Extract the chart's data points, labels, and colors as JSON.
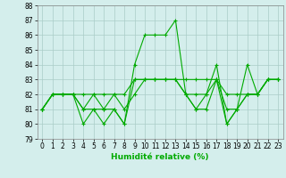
{
  "xlabel": "Humidité relative (%)",
  "background_color": "#d4eeec",
  "grid_color": "#aaccc8",
  "line_color": "#00aa00",
  "ylim": [
    79,
    88
  ],
  "xlim": [
    -0.5,
    23.5
  ],
  "yticks": [
    79,
    80,
    81,
    82,
    83,
    84,
    85,
    86,
    87,
    88
  ],
  "xticks": [
    0,
    1,
    2,
    3,
    4,
    5,
    6,
    7,
    8,
    9,
    10,
    11,
    12,
    13,
    14,
    15,
    16,
    17,
    18,
    19,
    20,
    21,
    22,
    23
  ],
  "series": [
    [
      81,
      82,
      82,
      82,
      81,
      81,
      81,
      81,
      80,
      84,
      86,
      86,
      86,
      87,
      82,
      81,
      82,
      84,
      80,
      81,
      84,
      82,
      83,
      83
    ],
    [
      81,
      82,
      82,
      82,
      80,
      81,
      80,
      81,
      80,
      83,
      83,
      83,
      83,
      83,
      82,
      81,
      81,
      83,
      80,
      81,
      82,
      82,
      83,
      83
    ],
    [
      81,
      82,
      82,
      82,
      81,
      82,
      81,
      82,
      81,
      82,
      83,
      83,
      83,
      83,
      82,
      82,
      82,
      83,
      81,
      81,
      82,
      82,
      83,
      83
    ],
    [
      81,
      82,
      82,
      82,
      82,
      82,
      82,
      82,
      82,
      83,
      83,
      83,
      83,
      83,
      83,
      83,
      83,
      83,
      82,
      82,
      82,
      82,
      83,
      83
    ]
  ]
}
